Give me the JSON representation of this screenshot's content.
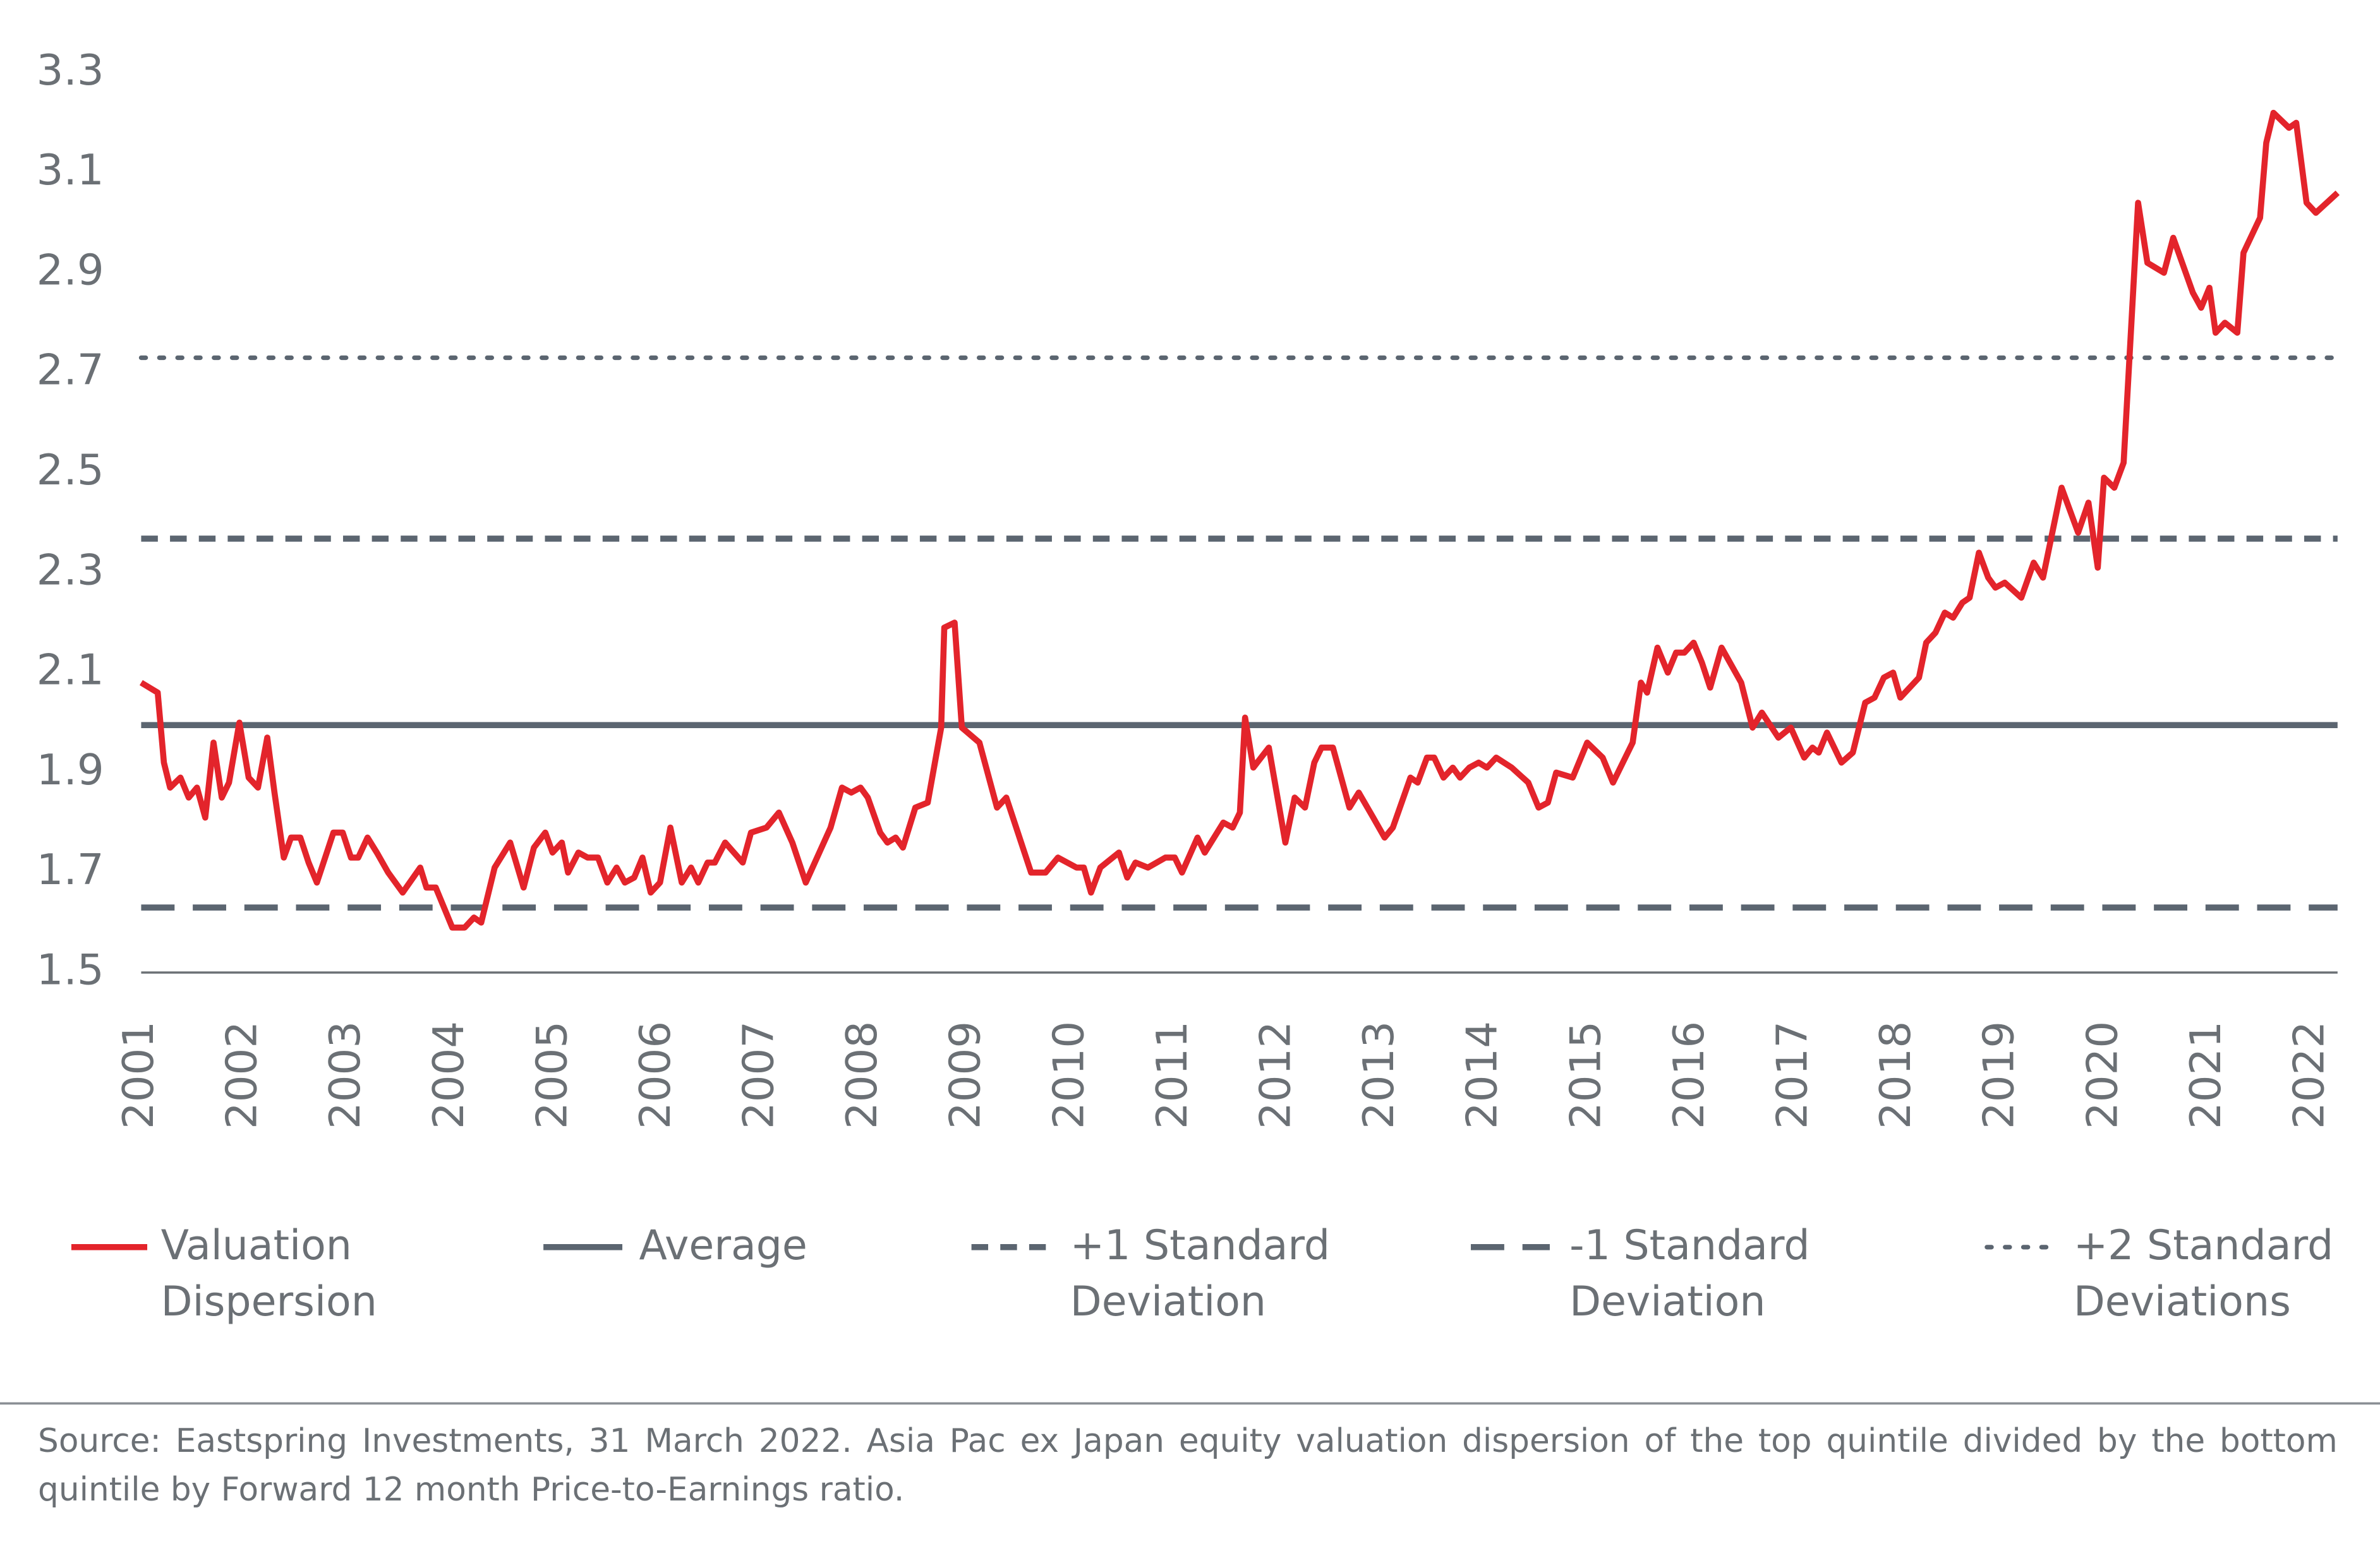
{
  "chart_data": {
    "type": "line",
    "xlim": [
      2001,
      2022.25
    ],
    "xticks": [
      2001,
      2002,
      2003,
      2004,
      2005,
      2006,
      2007,
      2008,
      2009,
      2010,
      2011,
      2012,
      2013,
      2014,
      2015,
      2016,
      2017,
      2018,
      2019,
      2020,
      2021,
      2022
    ],
    "ylim": [
      1.5,
      3.3
    ],
    "yticks": [
      1.5,
      1.7,
      1.9,
      2.1,
      2.3,
      2.5,
      2.7,
      2.9,
      3.1,
      3.3
    ],
    "grid": false,
    "x": [
      2001.0,
      2001.16,
      2001.22,
      2001.28,
      2001.38,
      2001.46,
      2001.54,
      2001.62,
      2001.7,
      2001.78,
      2001.85,
      2001.95,
      2002.04,
      2002.13,
      2002.22,
      2002.29,
      2002.38,
      2002.45,
      2002.54,
      2002.62,
      2002.7,
      2002.86,
      2002.95,
      2003.03,
      2003.1,
      2003.19,
      2003.28,
      2003.39,
      2003.53,
      2003.7,
      2003.76,
      2003.85,
      2004.01,
      2004.13,
      2004.22,
      2004.29,
      2004.42,
      2004.57,
      2004.7,
      2004.8,
      2004.91,
      2004.98,
      2005.07,
      2005.13,
      2005.23,
      2005.32,
      2005.42,
      2005.51,
      2005.6,
      2005.68,
      2005.77,
      2005.85,
      2005.93,
      2006.02,
      2006.12,
      2006.23,
      2006.32,
      2006.39,
      2006.48,
      2006.55,
      2006.65,
      2006.82,
      2006.9,
      2007.05,
      2007.17,
      2007.3,
      2007.43,
      2007.67,
      2007.78,
      2007.87,
      2007.96,
      2008.03,
      2008.15,
      2008.22,
      2008.3,
      2008.37,
      2008.49,
      2008.61,
      2008.74,
      2008.77,
      2008.87,
      2008.94,
      2009.11,
      2009.28,
      2009.37,
      2009.61,
      2009.75,
      2009.87,
      2010.05,
      2010.12,
      2010.19,
      2010.28,
      2010.46,
      2010.54,
      2010.62,
      2010.74,
      2010.91,
      2011.0,
      2011.07,
      2011.22,
      2011.29,
      2011.47,
      2011.56,
      2011.63,
      2011.68,
      2011.76,
      2011.91,
      2012.07,
      2012.16,
      2012.26,
      2012.35,
      2012.42,
      2012.53,
      2012.69,
      2012.78,
      2012.92,
      2013.03,
      2013.11,
      2013.28,
      2013.35,
      2013.44,
      2013.51,
      2013.6,
      2013.69,
      2013.76,
      2013.85,
      2013.94,
      2014.02,
      2014.11,
      2014.26,
      2014.42,
      2014.52,
      2014.61,
      2014.69,
      2014.85,
      2014.99,
      2015.14,
      2015.24,
      2015.43,
      2015.51,
      2015.57,
      2015.67,
      2015.77,
      2015.85,
      2015.93,
      2016.02,
      2016.1,
      2016.18,
      2016.29,
      2016.48,
      2016.59,
      2016.68,
      2016.84,
      2016.96,
      2017.09,
      2017.17,
      2017.23,
      2017.31,
      2017.45,
      2017.56,
      2017.68,
      2017.77,
      2017.86,
      2017.95,
      2018.02,
      2018.2,
      2018.27,
      2018.36,
      2018.45,
      2018.53,
      2018.62,
      2018.69,
      2018.78,
      2018.87,
      2018.94,
      2019.03,
      2019.19,
      2019.31,
      2019.4,
      2019.58,
      2019.74,
      2019.84,
      2019.93,
      2019.99,
      2020.09,
      2020.18,
      2020.32,
      2020.41,
      2020.57,
      2020.66,
      2020.85,
      2020.93,
      2021.01,
      2021.07,
      2021.16,
      2021.28,
      2021.34,
      2021.5,
      2021.56,
      2021.63,
      2021.78,
      2021.85,
      2021.95,
      2022.04,
      2022.25
    ],
    "series": [
      {
        "name": "Valuation Dispersion",
        "color": "#e3242b",
        "values": [
          2.08,
          2.06,
          1.92,
          1.87,
          1.89,
          1.85,
          1.87,
          1.81,
          1.96,
          1.85,
          1.88,
          2.0,
          1.89,
          1.87,
          1.97,
          1.86,
          1.73,
          1.77,
          1.77,
          1.72,
          1.68,
          1.78,
          1.78,
          1.73,
          1.73,
          1.77,
          1.74,
          1.7,
          1.66,
          1.71,
          1.67,
          1.67,
          1.59,
          1.59,
          1.61,
          1.6,
          1.71,
          1.76,
          1.67,
          1.75,
          1.78,
          1.74,
          1.76,
          1.7,
          1.74,
          1.73,
          1.73,
          1.68,
          1.71,
          1.68,
          1.69,
          1.73,
          1.66,
          1.68,
          1.79,
          1.68,
          1.71,
          1.68,
          1.72,
          1.72,
          1.76,
          1.72,
          1.78,
          1.79,
          1.82,
          1.76,
          1.68,
          1.79,
          1.87,
          1.86,
          1.87,
          1.85,
          1.78,
          1.76,
          1.77,
          1.75,
          1.83,
          1.84,
          1.99,
          2.19,
          2.2,
          1.99,
          1.96,
          1.83,
          1.85,
          1.7,
          1.7,
          1.73,
          1.71,
          1.71,
          1.66,
          1.71,
          1.74,
          1.69,
          1.72,
          1.71,
          1.73,
          1.73,
          1.7,
          1.77,
          1.74,
          1.8,
          1.79,
          1.82,
          2.01,
          1.91,
          1.95,
          1.76,
          1.85,
          1.83,
          1.92,
          1.95,
          1.95,
          1.83,
          1.86,
          1.81,
          1.77,
          1.79,
          1.89,
          1.88,
          1.93,
          1.93,
          1.89,
          1.91,
          1.89,
          1.91,
          1.92,
          1.91,
          1.93,
          1.91,
          1.88,
          1.83,
          1.84,
          1.9,
          1.89,
          1.96,
          1.93,
          1.88,
          1.96,
          2.08,
          2.06,
          2.15,
          2.1,
          2.14,
          2.14,
          2.16,
          2.12,
          2.07,
          2.15,
          2.08,
          1.99,
          2.02,
          1.97,
          1.99,
          1.93,
          1.95,
          1.94,
          1.98,
          1.92,
          1.94,
          2.04,
          2.05,
          2.09,
          2.1,
          2.05,
          2.09,
          2.16,
          2.18,
          2.22,
          2.21,
          2.24,
          2.25,
          2.34,
          2.29,
          2.27,
          2.28,
          2.25,
          2.32,
          2.29,
          2.47,
          2.38,
          2.44,
          2.31,
          2.49,
          2.47,
          2.52,
          3.04,
          2.92,
          2.9,
          2.97,
          2.86,
          2.83,
          2.87,
          2.78,
          2.8,
          2.78,
          2.94,
          3.01,
          3.16,
          3.22,
          3.19,
          3.2,
          3.04,
          3.02,
          3.06
        ]
      }
    ],
    "reference_lines": [
      {
        "name": "Average",
        "color": "#5b6570",
        "style": "solid",
        "value": 1.995
      },
      {
        "name": "+1 Standard Deviation",
        "color": "#5b6570",
        "style": "dashed",
        "value": 2.368
      },
      {
        "name": "-1 Standard Deviation",
        "color": "#5b6570",
        "style": "long-dashed",
        "value": 1.63
      },
      {
        "name": "+2 Standard Deviations",
        "color": "#5b6570",
        "style": "dotted",
        "value": 2.73
      }
    ],
    "source": "Source: Eastspring Investments, 31 March 2022. Asia Pac ex Japan equity valuation dispersion of the top quintile divided by the bottom quintile by Forward 12 month Price-to-Earnings ratio."
  }
}
